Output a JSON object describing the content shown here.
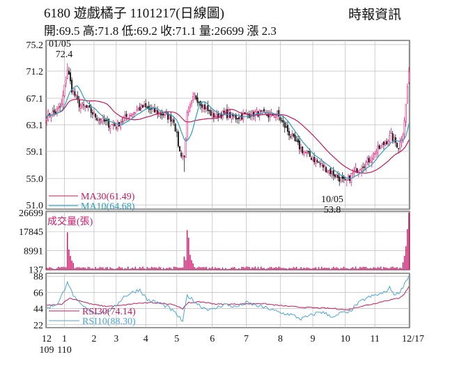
{
  "header": {
    "title": "6180  遊戲橘子 1101217(日線圖)",
    "ohlc_line": "開:69.5 高:71.8 低:69.2 收:71.1 量:26699 漲 2.3",
    "source": "時報資訊"
  },
  "colors": {
    "up": "#e0207a",
    "down": "#222222",
    "ma30": "#c8185a",
    "ma10": "#2a9fc0",
    "volume": "#d0186c",
    "rsi30": "#c8185a",
    "rsi10": "#4aa6d6",
    "grid": "#bbbbbb"
  },
  "chart_data": [
    {
      "type": "candlestick",
      "panel": "price",
      "ylim": [
        51.0,
        75.2
      ],
      "y_ticks": [
        "75.2",
        "71.2",
        "67.1",
        "63.1",
        "59.1",
        "55.0",
        "51.0"
      ],
      "y_tick_values": [
        75.2,
        71.2,
        67.1,
        63.1,
        59.1,
        55.0,
        51.0
      ],
      "x_labels": [
        "12",
        "1",
        "2",
        "3",
        "4",
        "5",
        "6",
        "7",
        "8",
        "9",
        "10",
        "11",
        "12/17"
      ],
      "x_label_index": [
        0,
        12,
        32,
        47,
        67,
        88,
        112,
        135,
        158,
        180,
        202,
        222,
        245
      ],
      "x_sublabels": [
        "109",
        "110"
      ],
      "annotations": [
        {
          "text": "01/05",
          "value": 72.4,
          "index": 14
        },
        {
          "text": "72.4",
          "value": 72.4,
          "index": 14
        },
        {
          "text": "10/05",
          "value": 53.8,
          "index": 203
        },
        {
          "text": "53.8",
          "value": 53.8,
          "index": 203
        }
      ],
      "legend": [
        {
          "text": "MA30(61.49)",
          "color": "#c8185a"
        },
        {
          "text": "MA10(64.68)",
          "color": "#2a9fc0"
        }
      ],
      "close_keypoints": [
        [
          0,
          64.6
        ],
        [
          6,
          65.0
        ],
        [
          10,
          66.0
        ],
        [
          14,
          71.5
        ],
        [
          17,
          68.5
        ],
        [
          22,
          66.2
        ],
        [
          28,
          65.5
        ],
        [
          35,
          64.0
        ],
        [
          42,
          63.2
        ],
        [
          47,
          63.0
        ],
        [
          55,
          64.5
        ],
        [
          65,
          65.8
        ],
        [
          72,
          65.2
        ],
        [
          80,
          64.6
        ],
        [
          86,
          63.8
        ],
        [
          90,
          59.0
        ],
        [
          93,
          58.2
        ],
        [
          95,
          64.5
        ],
        [
          100,
          67.5
        ],
        [
          106,
          66.0
        ],
        [
          112,
          64.5
        ],
        [
          120,
          64.8
        ],
        [
          128,
          64.2
        ],
        [
          135,
          64.6
        ],
        [
          142,
          64.9
        ],
        [
          150,
          64.5
        ],
        [
          156,
          64.7
        ],
        [
          162,
          62.5
        ],
        [
          168,
          60.5
        ],
        [
          174,
          59.0
        ],
        [
          180,
          58.0
        ],
        [
          186,
          57.0
        ],
        [
          192,
          56.0
        ],
        [
          197,
          55.2
        ],
        [
          202,
          54.3
        ],
        [
          206,
          55.5
        ],
        [
          212,
          56.8
        ],
        [
          217,
          57.5
        ],
        [
          222,
          59.0
        ],
        [
          228,
          60.2
        ],
        [
          233,
          61.4
        ],
        [
          238,
          59.8
        ],
        [
          241,
          62.0
        ],
        [
          243,
          66.0
        ],
        [
          244,
          68.8
        ],
        [
          245,
          71.1
        ]
      ],
      "last": {
        "open": 69.5,
        "high": 71.8,
        "low": 69.2,
        "close": 71.1
      }
    },
    {
      "type": "bar",
      "panel": "volume",
      "ylabel": "成交量(張)",
      "ylim": [
        137,
        26699
      ],
      "y_ticks": [
        "26699",
        "17845",
        "8991",
        "137"
      ],
      "y_tick_values": [
        26699,
        17845,
        8991,
        137
      ],
      "spikes": [
        [
          14,
          17500
        ],
        [
          15,
          9500
        ],
        [
          16,
          6500
        ],
        [
          17,
          4300
        ],
        [
          18,
          3200
        ],
        [
          93,
          6200
        ],
        [
          94,
          4500
        ],
        [
          95,
          18500
        ],
        [
          96,
          15000
        ],
        [
          97,
          7000
        ],
        [
          98,
          4500
        ],
        [
          99,
          3000
        ],
        [
          241,
          3500
        ],
        [
          242,
          6500
        ],
        [
          243,
          11000
        ],
        [
          244,
          19000
        ],
        [
          245,
          26699
        ]
      ],
      "base_volume": 1000
    },
    {
      "type": "line",
      "panel": "rsi",
      "ylim": [
        22,
        88
      ],
      "y_ticks": [
        "88",
        "66",
        "44",
        "22"
      ],
      "y_tick_values": [
        88,
        66,
        44,
        22
      ],
      "legend": [
        {
          "text": "RSI30(74.14)",
          "color": "#c8185a"
        },
        {
          "text": "RSI10(88.30)",
          "color": "#4aa6d6"
        }
      ],
      "series": [
        {
          "name": "RSI30",
          "keypoints": [
            [
              0,
              48
            ],
            [
              10,
              50
            ],
            [
              15,
              58
            ],
            [
              22,
              55
            ],
            [
              30,
              50
            ],
            [
              40,
              47
            ],
            [
              50,
              48
            ],
            [
              60,
              51
            ],
            [
              72,
              52
            ],
            [
              85,
              50
            ],
            [
              92,
              44
            ],
            [
              96,
              52
            ],
            [
              105,
              53
            ],
            [
              115,
              50
            ],
            [
              130,
              50
            ],
            [
              145,
              51
            ],
            [
              158,
              48
            ],
            [
              170,
              46
            ],
            [
              182,
              45
            ],
            [
              195,
              44
            ],
            [
              203,
              42
            ],
            [
              210,
              46
            ],
            [
              220,
              50
            ],
            [
              230,
              55
            ],
            [
              238,
              58
            ],
            [
              242,
              64
            ],
            [
              245,
              74.14
            ]
          ]
        },
        {
          "name": "RSI10",
          "keypoints": [
            [
              0,
              44
            ],
            [
              8,
              52
            ],
            [
              12,
              70
            ],
            [
              14,
              82
            ],
            [
              16,
              70
            ],
            [
              20,
              55
            ],
            [
              25,
              46
            ],
            [
              32,
              38
            ],
            [
              40,
              40
            ],
            [
              45,
              44
            ],
            [
              52,
              60
            ],
            [
              58,
              66
            ],
            [
              63,
              70
            ],
            [
              68,
              56
            ],
            [
              75,
              52
            ],
            [
              82,
              46
            ],
            [
              88,
              36
            ],
            [
              92,
              26
            ],
            [
              95,
              62
            ],
            [
              98,
              57
            ],
            [
              105,
              46
            ],
            [
              112,
              42
            ],
            [
              120,
              50
            ],
            [
              128,
              46
            ],
            [
              135,
              52
            ],
            [
              142,
              48
            ],
            [
              150,
              44
            ],
            [
              158,
              38
            ],
            [
              165,
              36
            ],
            [
              172,
              30
            ],
            [
              178,
              34
            ],
            [
              185,
              40
            ],
            [
              190,
              36
            ],
            [
              195,
              32
            ],
            [
              200,
              40
            ],
            [
              203,
              36
            ],
            [
              210,
              50
            ],
            [
              216,
              58
            ],
            [
              222,
              62
            ],
            [
              228,
              65
            ],
            [
              232,
              72
            ],
            [
              236,
              62
            ],
            [
              240,
              70
            ],
            [
              243,
              82
            ],
            [
              245,
              88.3
            ]
          ]
        }
      ]
    }
  ]
}
